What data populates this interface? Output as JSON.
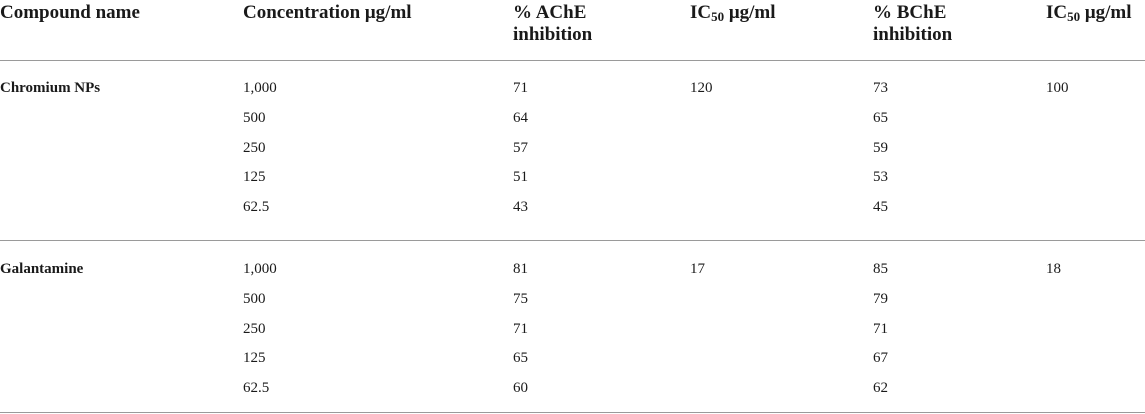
{
  "table": {
    "headers": {
      "compound": "Compound name",
      "concentration": "Concentration μg/ml",
      "ache_line1": "% AChE",
      "ache_line2": "inhibition",
      "ic50_ache_prefix": "IC",
      "ic50_ache_sub": "50",
      "ic50_ache_suffix": " μg/ml",
      "bche_line1": "% BChE",
      "bche_line2": "inhibition",
      "ic50_bche_prefix": "IC",
      "ic50_bche_sub": "50",
      "ic50_bche_suffix": " μg/ml"
    },
    "groups": [
      {
        "compound": "Chromium NPs",
        "ic50_ache": "120",
        "ic50_bche": "100",
        "rows": [
          {
            "concentration": "1,000",
            "ache": "71",
            "bche": "73"
          },
          {
            "concentration": "500",
            "ache": "64",
            "bche": "65"
          },
          {
            "concentration": "250",
            "ache": "57",
            "bche": "59"
          },
          {
            "concentration": "125",
            "ache": "51",
            "bche": "53"
          },
          {
            "concentration": "62.5",
            "ache": "43",
            "bche": "45"
          }
        ]
      },
      {
        "compound": "Galantamine",
        "ic50_ache": "17",
        "ic50_bche": "18",
        "rows": [
          {
            "concentration": "1,000",
            "ache": "81",
            "bche": "85"
          },
          {
            "concentration": "500",
            "ache": "75",
            "bche": "79"
          },
          {
            "concentration": "250",
            "ache": "71",
            "bche": "71"
          },
          {
            "concentration": "125",
            "ache": "65",
            "bche": "67"
          },
          {
            "concentration": "62.5",
            "ache": "60",
            "bche": "62"
          }
        ]
      }
    ]
  }
}
